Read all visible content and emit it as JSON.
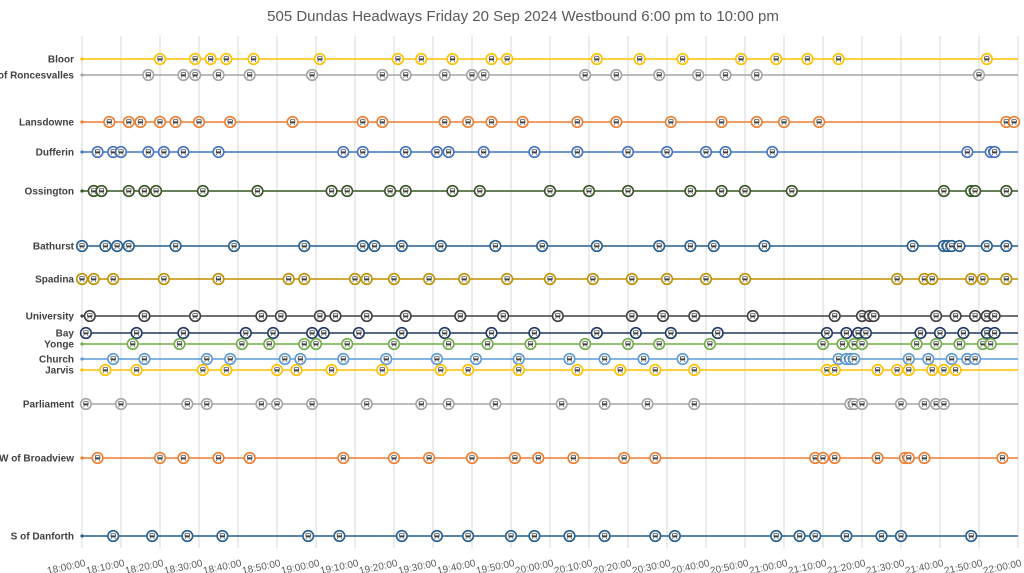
{
  "chart_data": {
    "type": "scatter",
    "title": "505 Dundas Headways Friday 20 Sep 2024 Westbound 6:00 pm to 10:00 pm",
    "xlabel": "",
    "ylabel": "",
    "x_unit": "time of day",
    "xlim": [
      "18:00:00",
      "22:00:00"
    ],
    "x_ticks": [
      "18:00:00",
      "18:10:00",
      "18:20:00",
      "18:30:00",
      "18:40:00",
      "18:50:00",
      "19:00:00",
      "19:10:00",
      "19:20:00",
      "19:30:00",
      "19:40:00",
      "19:50:00",
      "20:00:00",
      "20:10:00",
      "20:20:00",
      "20:30:00",
      "20:40:00",
      "20:50:00",
      "21:00:00",
      "21:10:00",
      "21:20:00",
      "21:30:00",
      "21:40:00",
      "21:50:00",
      "22:00:00"
    ],
    "grid": "vertical",
    "marker": "streetcar-icon",
    "series": [
      {
        "name": "Bloor",
        "color": "#FFC000",
        "times": [
          "18:20",
          "18:29",
          "18:33",
          "18:37",
          "18:44",
          "19:01",
          "19:21",
          "19:27",
          "19:35",
          "19:45",
          "19:49",
          "20:12",
          "20:23",
          "20:34",
          "20:49",
          "20:58",
          "21:06",
          "21:14",
          "21:52"
        ]
      },
      {
        "name": "E of Roncesvalles",
        "color": "#A5A5A5",
        "times": [
          "18:17",
          "18:26",
          "18:29",
          "18:35",
          "18:43",
          "18:59",
          "19:17",
          "19:23",
          "19:33",
          "19:40",
          "19:43",
          "20:09",
          "20:17",
          "20:28",
          "20:38",
          "20:45",
          "20:53",
          "21:50"
        ]
      },
      {
        "name": "Lansdowne",
        "color": "#ED7D31",
        "times": [
          "18:07",
          "18:12",
          "18:15",
          "18:20",
          "18:24",
          "18:30",
          "18:38",
          "18:54",
          "19:12",
          "19:17",
          "19:33",
          "19:39",
          "19:45",
          "19:53",
          "20:07",
          "20:17",
          "20:31",
          "20:44",
          "20:53",
          "21:00",
          "21:09",
          "21:57",
          "21:59"
        ]
      },
      {
        "name": "Dufferin",
        "color": "#4472C4",
        "times": [
          "18:04",
          "18:08",
          "18:10",
          "18:17",
          "18:21",
          "18:26",
          "18:35",
          "19:07",
          "19:12",
          "19:23",
          "19:31",
          "19:34",
          "19:43",
          "19:56",
          "20:07",
          "20:20",
          "20:30",
          "20:40",
          "20:45",
          "20:57",
          "21:47",
          "21:53",
          "21:54"
        ]
      },
      {
        "name": "Ossington",
        "color": "#375623",
        "times": [
          "18:03",
          "18:05",
          "18:12",
          "18:16",
          "18:19",
          "18:31",
          "18:45",
          "19:04",
          "19:08",
          "19:19",
          "19:23",
          "19:35",
          "19:42",
          "20:00",
          "20:10",
          "20:20",
          "20:36",
          "20:44",
          "20:50",
          "21:02",
          "21:41",
          "21:48",
          "21:49",
          "21:57"
        ]
      },
      {
        "name": "Bathurst",
        "color": "#255E91",
        "times": [
          "18:00",
          "18:06",
          "18:09",
          "18:12",
          "18:24",
          "18:39",
          "18:57",
          "19:12",
          "19:15",
          "19:22",
          "19:32",
          "19:46",
          "19:58",
          "20:12",
          "20:28",
          "20:36",
          "20:42",
          "20:55",
          "21:33",
          "21:41",
          "21:42",
          "21:43",
          "21:45",
          "21:52",
          "21:57"
        ]
      },
      {
        "name": "Spadina",
        "color": "#BF9000",
        "times": [
          "18:00",
          "18:03",
          "18:08",
          "18:21",
          "18:35",
          "18:53",
          "18:57",
          "19:10",
          "19:13",
          "19:20",
          "19:29",
          "19:38",
          "19:49",
          "20:00",
          "20:11",
          "20:21",
          "20:30",
          "20:40",
          "20:50",
          "21:29",
          "21:36",
          "21:38",
          "21:48",
          "21:51",
          "21:57"
        ]
      },
      {
        "name": "University",
        "color": "#404040",
        "times": [
          "18:02",
          "18:16",
          "18:29",
          "18:46",
          "18:51",
          "19:01",
          "19:05",
          "19:13",
          "19:23",
          "19:37",
          "19:48",
          "20:02",
          "20:21",
          "20:29",
          "20:37",
          "20:52",
          "21:13",
          "21:20",
          "21:22",
          "21:23",
          "21:39",
          "21:44",
          "21:49",
          "21:52",
          "21:54"
        ]
      },
      {
        "name": "Bay",
        "color": "#203864",
        "times": [
          "18:01",
          "18:14",
          "18:26",
          "18:42",
          "18:49",
          "18:59",
          "19:02",
          "19:11",
          "19:22",
          "19:33",
          "19:45",
          "19:56",
          "20:12",
          "20:22",
          "20:31",
          "20:43",
          "21:11",
          "21:16",
          "21:19",
          "21:21",
          "21:35",
          "21:40",
          "21:46",
          "21:52",
          "21:54"
        ]
      },
      {
        "name": "Yonge",
        "color": "#70AD47",
        "times": [
          "18:13",
          "18:25",
          "18:41",
          "18:48",
          "18:57",
          "19:00",
          "19:08",
          "19:20",
          "19:34",
          "19:44",
          "19:55",
          "20:09",
          "20:20",
          "20:28",
          "20:41",
          "21:10",
          "21:15",
          "21:18",
          "21:20",
          "21:34",
          "21:39",
          "21:45",
          "21:51",
          "21:53"
        ]
      },
      {
        "name": "Church",
        "color": "#5B9BD5",
        "times": [
          "18:08",
          "18:16",
          "18:32",
          "18:38",
          "18:52",
          "18:56",
          "19:07",
          "19:18",
          "19:31",
          "19:41",
          "19:52",
          "20:05",
          "20:14",
          "20:24",
          "20:34",
          "21:14",
          "21:16",
          "21:17",
          "21:18",
          "21:32",
          "21:37",
          "21:43",
          "21:47",
          "21:49"
        ]
      },
      {
        "name": "Jarvis",
        "color": "#FFC000",
        "times": [
          "18:06",
          "18:14",
          "18:31",
          "18:37",
          "18:50",
          "18:55",
          "19:04",
          "19:17",
          "19:32",
          "19:39",
          "19:52",
          "20:07",
          "20:18",
          "20:27",
          "20:37",
          "21:11",
          "21:13",
          "21:24",
          "21:29",
          "21:32",
          "21:38",
          "21:41",
          "21:44"
        ]
      },
      {
        "name": "Parliament",
        "color": "#A5A5A5",
        "times": [
          "18:01",
          "18:10",
          "18:27",
          "18:32",
          "18:46",
          "18:50",
          "18:59",
          "19:13",
          "19:27",
          "19:34",
          "19:46",
          "20:03",
          "20:14",
          "20:25",
          "20:37",
          "21:17",
          "21:18",
          "21:20",
          "21:30",
          "21:36",
          "21:39",
          "21:41"
        ]
      },
      {
        "name": "W of Broadview",
        "color": "#ED7D31",
        "times": [
          "18:04",
          "18:20",
          "18:26",
          "18:35",
          "18:43",
          "19:07",
          "19:20",
          "19:29",
          "19:40",
          "19:51",
          "19:57",
          "20:06",
          "20:19",
          "20:27",
          "21:08",
          "21:10",
          "21:13",
          "21:24",
          "21:31",
          "21:32",
          "21:36",
          "21:56"
        ]
      },
      {
        "name": "S of Danforth",
        "color": "#255E91",
        "times": [
          "18:08",
          "18:18",
          "18:27",
          "18:36",
          "18:58",
          "19:06",
          "19:22",
          "19:31",
          "19:39",
          "19:50",
          "19:56",
          "20:05",
          "20:14",
          "20:27",
          "20:32",
          "20:58",
          "21:04",
          "21:08",
          "21:16",
          "21:25",
          "21:30",
          "21:48"
        ]
      }
    ]
  }
}
